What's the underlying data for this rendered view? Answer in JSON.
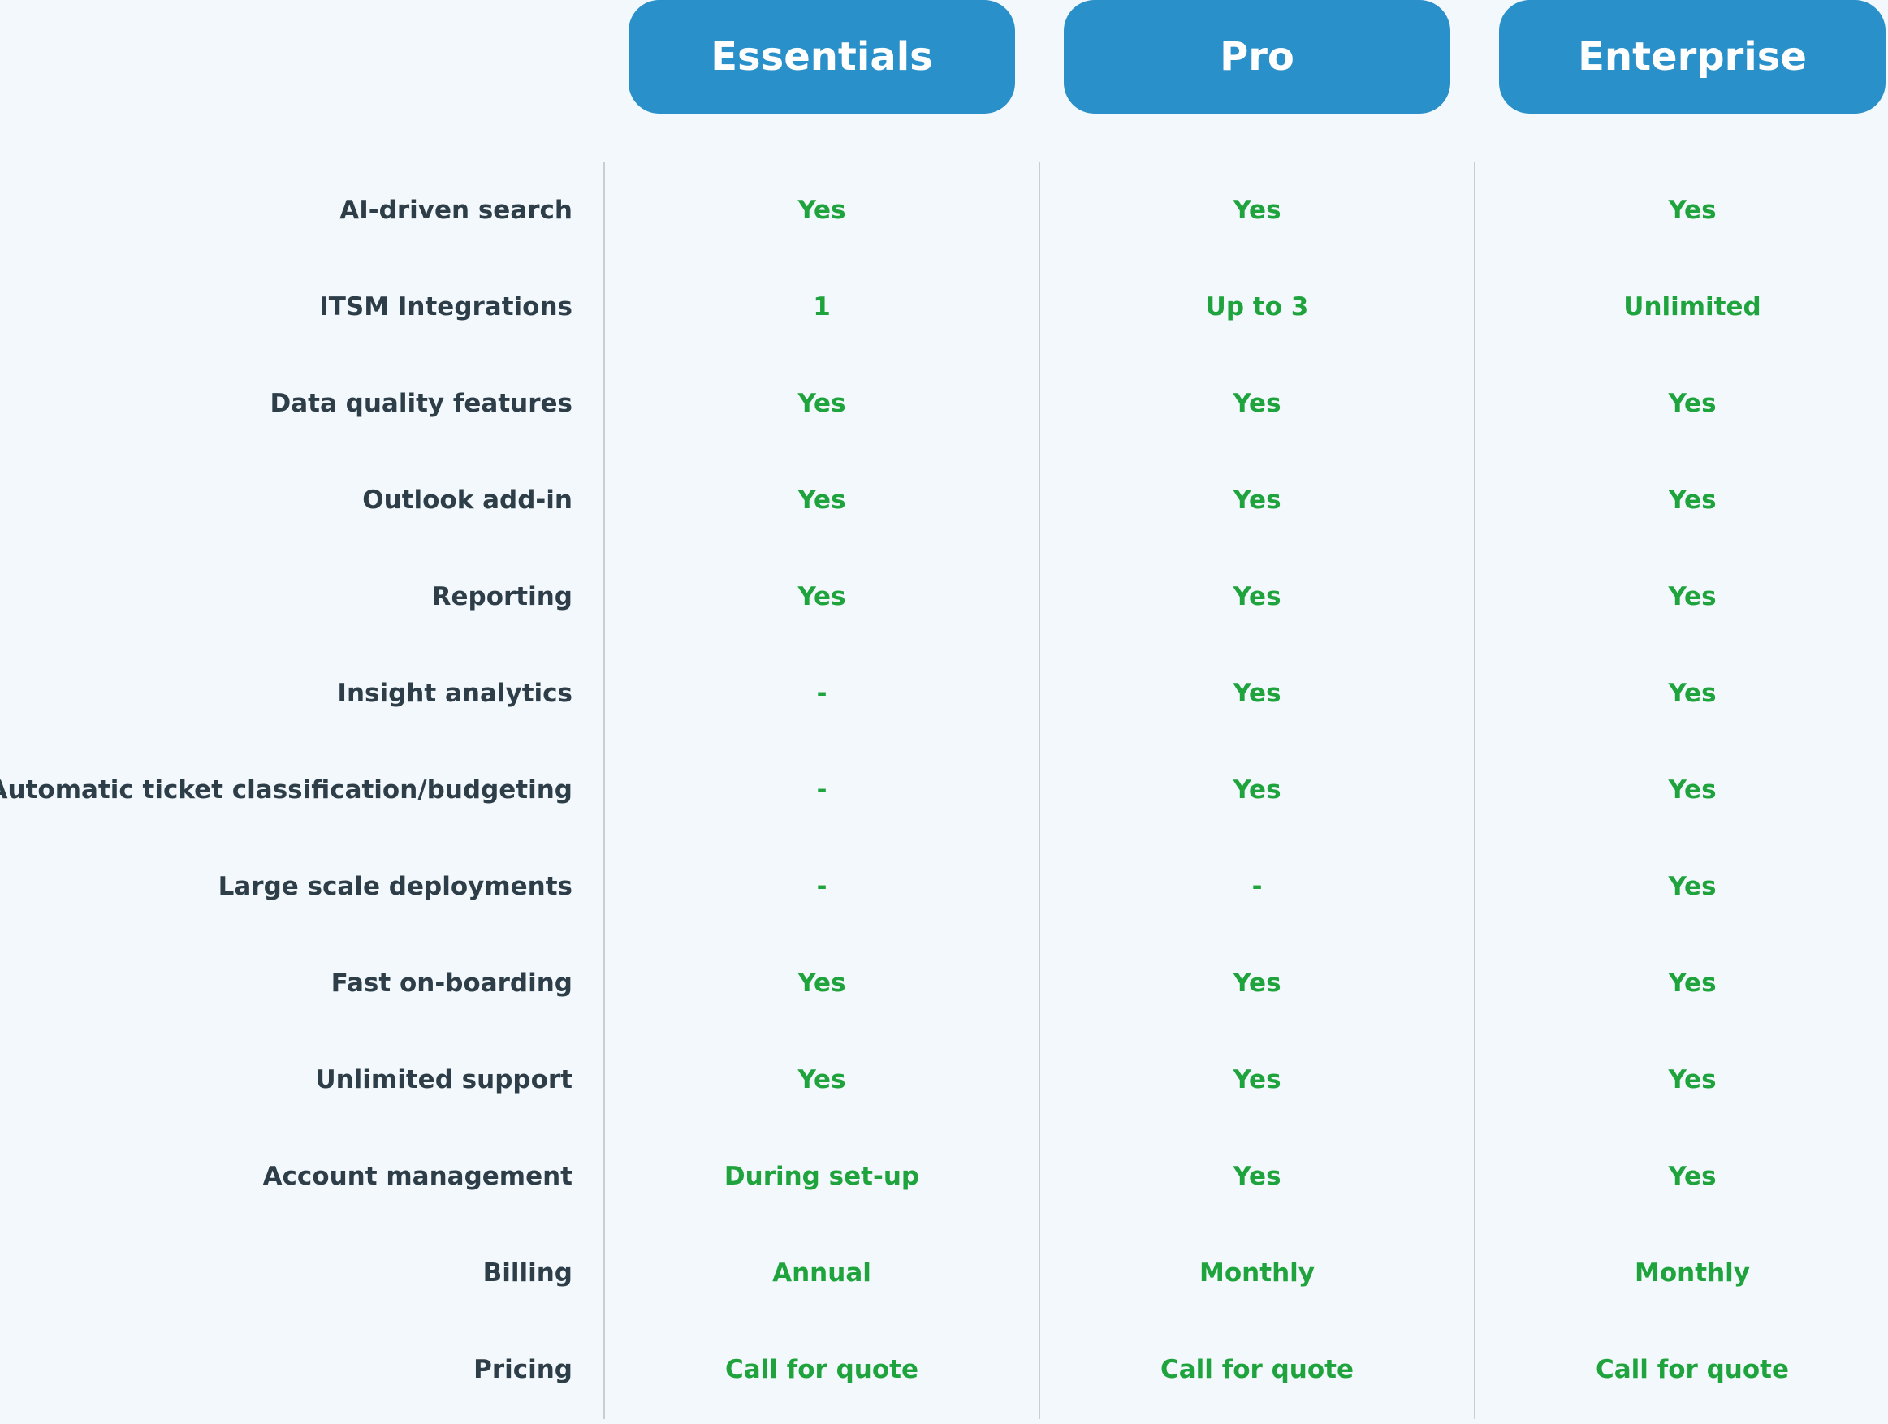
{
  "colors": {
    "background": "#f3f8fc",
    "header_bg": "#2a90c9",
    "header_text": "#ffffff",
    "label_text": "#2e3e49",
    "value_text": "#1fa33d",
    "divider": "#c8ced3"
  },
  "plans": [
    {
      "name": "Essentials"
    },
    {
      "name": "Pro"
    },
    {
      "name": "Enterprise"
    }
  ],
  "features": [
    {
      "label": "AI-driven search",
      "values": [
        "Yes",
        "Yes",
        "Yes"
      ]
    },
    {
      "label": "ITSM Integrations",
      "values": [
        "1",
        "Up to 3",
        "Unlimited"
      ]
    },
    {
      "label": "Data quality features",
      "values": [
        "Yes",
        "Yes",
        "Yes"
      ]
    },
    {
      "label": "Outlook add-in",
      "values": [
        "Yes",
        "Yes",
        "Yes"
      ]
    },
    {
      "label": "Reporting",
      "values": [
        "Yes",
        "Yes",
        "Yes"
      ]
    },
    {
      "label": "Insight analytics",
      "values": [
        "-",
        "Yes",
        "Yes"
      ]
    },
    {
      "label": "Automatic ticket classification/budgeting",
      "values": [
        "-",
        "Yes",
        "Yes"
      ]
    },
    {
      "label": "Large scale deployments",
      "values": [
        "-",
        "-",
        "Yes"
      ]
    },
    {
      "label": "Fast on-boarding",
      "values": [
        "Yes",
        "Yes",
        "Yes"
      ]
    },
    {
      "label": "Unlimited support",
      "values": [
        "Yes",
        "Yes",
        "Yes"
      ]
    },
    {
      "label": "Account management",
      "values": [
        "During set-up",
        "Yes",
        "Yes"
      ]
    },
    {
      "label": "Billing",
      "values": [
        "Annual",
        "Monthly",
        "Monthly"
      ]
    },
    {
      "label": "Pricing",
      "values": [
        "Call for quote",
        "Call for quote",
        "Call for quote"
      ]
    }
  ]
}
